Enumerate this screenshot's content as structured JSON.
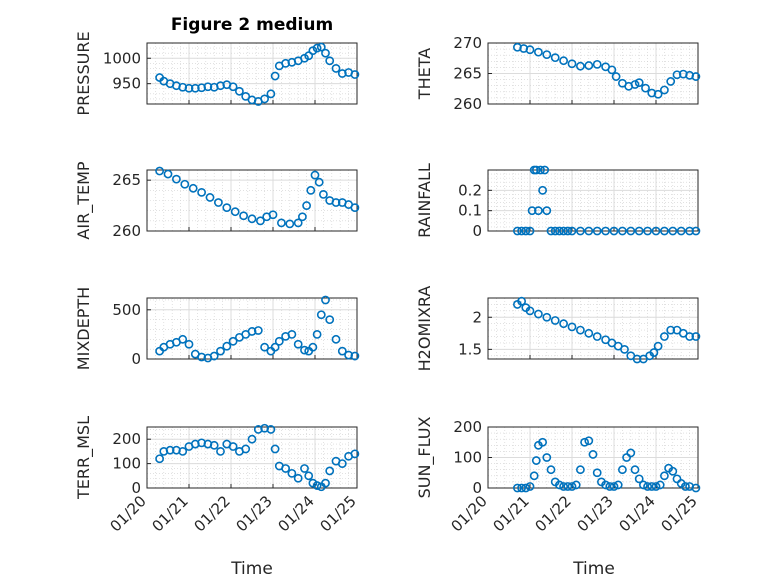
{
  "figure_title": "Figure 2 medium",
  "colors": {
    "marker": "#0072BD",
    "axes": "#262626",
    "grid": "#dcdcdc"
  },
  "x_tick_labels": [
    "01/20",
    "01/21",
    "01/22",
    "01/23",
    "01/24",
    "01/25"
  ],
  "x_label": "Time",
  "chart_data": [
    {
      "type": "scatter",
      "name": "pressure",
      "ylabel": "PRESSURE",
      "title": "Figure 2 medium",
      "ylim": [
        910,
        1030
      ],
      "yticks": [
        950,
        1000
      ],
      "xlim": [
        0,
        5
      ],
      "x": [
        0.3,
        0.4,
        0.55,
        0.7,
        0.85,
        1.0,
        1.15,
        1.3,
        1.45,
        1.6,
        1.75,
        1.9,
        2.05,
        2.2,
        2.35,
        2.5,
        2.65,
        2.8,
        2.95,
        3.05,
        3.15,
        3.3,
        3.45,
        3.6,
        3.75,
        3.85,
        3.95,
        4.05,
        4.15,
        4.25,
        4.35,
        4.5,
        4.65,
        4.8,
        4.95
      ],
      "y": [
        962,
        955,
        950,
        946,
        943,
        941,
        941,
        942,
        944,
        943,
        946,
        948,
        944,
        935,
        925,
        918,
        915,
        920,
        930,
        965,
        985,
        990,
        992,
        995,
        1000,
        1005,
        1015,
        1020,
        1022,
        1010,
        995,
        980,
        970,
        972,
        968
      ]
    },
    {
      "type": "scatter",
      "name": "theta",
      "ylabel": "THETA",
      "ylim": [
        260,
        270
      ],
      "yticks": [
        260,
        265,
        270
      ],
      "xlim": [
        0,
        5
      ],
      "x": [
        0.7,
        0.85,
        1.0,
        1.2,
        1.4,
        1.6,
        1.8,
        2.0,
        2.2,
        2.4,
        2.6,
        2.8,
        2.95,
        3.05,
        3.2,
        3.35,
        3.5,
        3.6,
        3.75,
        3.9,
        4.05,
        4.2,
        4.35,
        4.5,
        4.65,
        4.8,
        4.95
      ],
      "y": [
        269.3,
        269.1,
        268.9,
        268.5,
        268.1,
        267.6,
        267.1,
        266.6,
        266.2,
        266.3,
        266.5,
        266.1,
        265.6,
        264.5,
        263.4,
        262.9,
        263.2,
        263.5,
        262.6,
        261.8,
        261.6,
        262.3,
        263.7,
        264.8,
        264.9,
        264.7,
        264.5
      ]
    },
    {
      "type": "scatter",
      "name": "air_temp",
      "ylabel": "AIR_TEMP",
      "ylim": [
        260,
        266
      ],
      "yticks": [
        260,
        265
      ],
      "xlim": [
        0,
        5
      ],
      "x": [
        0.3,
        0.5,
        0.7,
        0.9,
        1.1,
        1.3,
        1.5,
        1.7,
        1.9,
        2.1,
        2.3,
        2.5,
        2.7,
        2.85,
        3.0,
        3.2,
        3.4,
        3.6,
        3.7,
        3.8,
        3.9,
        4.0,
        4.1,
        4.2,
        4.35,
        4.5,
        4.65,
        4.8,
        4.95
      ],
      "y": [
        265.9,
        265.6,
        265.1,
        264.6,
        264.2,
        263.8,
        263.3,
        262.8,
        262.3,
        261.9,
        261.5,
        261.2,
        261.0,
        261.4,
        261.6,
        260.8,
        260.7,
        260.8,
        261.4,
        262.5,
        264.0,
        265.5,
        264.8,
        263.6,
        263.0,
        262.8,
        262.8,
        262.6,
        262.3
      ]
    },
    {
      "type": "scatter",
      "name": "rainfall",
      "ylabel": "RAINFALL",
      "ylim": [
        0,
        0.3
      ],
      "yticks": [
        0,
        0.1,
        0.2
      ],
      "xlim": [
        0,
        5
      ],
      "x": [
        0.7,
        0.8,
        0.9,
        1.0,
        1.05,
        1.1,
        1.15,
        1.2,
        1.25,
        1.3,
        1.35,
        1.4,
        1.5,
        1.6,
        1.7,
        1.8,
        1.9,
        2.0,
        2.2,
        2.4,
        2.6,
        2.8,
        3.0,
        3.2,
        3.4,
        3.6,
        3.8,
        4.0,
        4.2,
        4.4,
        4.6,
        4.8,
        4.95
      ],
      "y": [
        0,
        0,
        0,
        0,
        0.1,
        0.3,
        0.3,
        0.1,
        0.3,
        0.2,
        0.3,
        0.1,
        0,
        0,
        0,
        0,
        0,
        0,
        0,
        0,
        0,
        0,
        0,
        0,
        0,
        0,
        0,
        0,
        0,
        0,
        0,
        0,
        0
      ]
    },
    {
      "type": "scatter",
      "name": "mixdepth",
      "ylabel": "MIXDEPTH",
      "ylim": [
        0,
        620
      ],
      "yticks": [
        0,
        500
      ],
      "xlim": [
        0,
        5
      ],
      "x": [
        0.3,
        0.4,
        0.55,
        0.7,
        0.85,
        1.0,
        1.15,
        1.3,
        1.45,
        1.6,
        1.75,
        1.9,
        2.05,
        2.2,
        2.35,
        2.5,
        2.65,
        2.8,
        2.95,
        3.05,
        3.15,
        3.3,
        3.45,
        3.6,
        3.75,
        3.85,
        3.95,
        4.05,
        4.15,
        4.25,
        4.35,
        4.5,
        4.65,
        4.8,
        4.95
      ],
      "y": [
        80,
        120,
        150,
        170,
        200,
        150,
        50,
        20,
        10,
        30,
        80,
        130,
        180,
        220,
        250,
        280,
        290,
        120,
        80,
        120,
        180,
        230,
        250,
        150,
        90,
        80,
        120,
        250,
        450,
        600,
        400,
        200,
        80,
        40,
        30
      ]
    },
    {
      "type": "scatter",
      "name": "h2omixra",
      "ylabel": "H2OMIXRA",
      "ylim": [
        1.35,
        2.3
      ],
      "yticks": [
        1.5,
        2
      ],
      "xlim": [
        0,
        5
      ],
      "x": [
        0.7,
        0.8,
        0.9,
        1.0,
        1.2,
        1.4,
        1.6,
        1.8,
        2.0,
        2.2,
        2.4,
        2.6,
        2.8,
        2.95,
        3.1,
        3.25,
        3.4,
        3.55,
        3.7,
        3.85,
        3.95,
        4.05,
        4.2,
        4.35,
        4.5,
        4.65,
        4.8,
        4.95
      ],
      "y": [
        2.2,
        2.25,
        2.15,
        2.1,
        2.05,
        2.0,
        1.95,
        1.9,
        1.85,
        1.8,
        1.75,
        1.7,
        1.65,
        1.6,
        1.55,
        1.5,
        1.4,
        1.35,
        1.35,
        1.4,
        1.45,
        1.55,
        1.7,
        1.8,
        1.8,
        1.75,
        1.7,
        1.7
      ]
    },
    {
      "type": "scatter",
      "name": "terr_msl",
      "ylabel": "TERR_MSL",
      "ylim": [
        0,
        250
      ],
      "yticks": [
        0,
        100,
        200
      ],
      "xlim": [
        0,
        5
      ],
      "x": [
        0.3,
        0.4,
        0.55,
        0.7,
        0.85,
        1.0,
        1.15,
        1.3,
        1.45,
        1.6,
        1.75,
        1.9,
        2.05,
        2.2,
        2.35,
        2.5,
        2.65,
        2.8,
        2.95,
        3.05,
        3.15,
        3.3,
        3.45,
        3.6,
        3.75,
        3.85,
        3.95,
        4.05,
        4.15,
        4.25,
        4.35,
        4.5,
        4.65,
        4.8,
        4.95
      ],
      "y": [
        120,
        150,
        155,
        155,
        150,
        170,
        180,
        185,
        180,
        175,
        150,
        180,
        170,
        150,
        160,
        200,
        240,
        245,
        240,
        160,
        90,
        80,
        60,
        40,
        80,
        50,
        20,
        10,
        5,
        20,
        70,
        110,
        100,
        130,
        140
      ]
    },
    {
      "type": "scatter",
      "name": "sun_flux",
      "ylabel": "SUN_FLUX",
      "ylim": [
        0,
        200
      ],
      "yticks": [
        0,
        100,
        200
      ],
      "xlim": [
        0,
        5
      ],
      "x": [
        0.7,
        0.8,
        0.9,
        1.0,
        1.1,
        1.15,
        1.2,
        1.3,
        1.4,
        1.5,
        1.6,
        1.7,
        1.8,
        1.9,
        2.0,
        2.1,
        2.2,
        2.3,
        2.4,
        2.5,
        2.6,
        2.7,
        2.8,
        2.9,
        3.0,
        3.1,
        3.2,
        3.3,
        3.4,
        3.5,
        3.6,
        3.7,
        3.8,
        3.9,
        4.0,
        4.1,
        4.2,
        4.3,
        4.4,
        4.5,
        4.6,
        4.7,
        4.8,
        4.95
      ],
      "y": [
        0,
        0,
        0,
        5,
        40,
        90,
        140,
        150,
        100,
        60,
        20,
        10,
        5,
        5,
        5,
        10,
        60,
        150,
        155,
        110,
        50,
        20,
        10,
        5,
        5,
        10,
        60,
        100,
        115,
        60,
        30,
        10,
        5,
        5,
        5,
        10,
        40,
        65,
        55,
        30,
        15,
        5,
        5,
        0
      ]
    }
  ]
}
